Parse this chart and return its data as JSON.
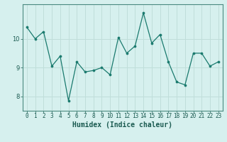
{
  "x": [
    0,
    1,
    2,
    3,
    4,
    5,
    6,
    7,
    8,
    9,
    10,
    11,
    12,
    13,
    14,
    15,
    16,
    17,
    18,
    19,
    20,
    21,
    22,
    23
  ],
  "y": [
    10.4,
    10.0,
    10.25,
    9.05,
    9.4,
    7.85,
    9.2,
    8.85,
    8.9,
    9.0,
    8.75,
    10.05,
    9.5,
    9.75,
    10.9,
    9.85,
    10.15,
    9.2,
    8.5,
    8.4,
    9.5,
    9.5,
    9.05,
    9.2
  ],
  "line_color": "#1a7a6e",
  "marker_color": "#1a7a6e",
  "bg_color": "#d6f0ee",
  "grid_color": "#c0deda",
  "xlabel": "Humidex (Indice chaleur)",
  "yticks": [
    8,
    9,
    10
  ],
  "xlim": [
    -0.5,
    23.5
  ],
  "ylim": [
    7.5,
    11.2
  ],
  "axis_color": "#4a8a80",
  "font_color": "#1a5a50",
  "tick_fontsize": 5.5,
  "label_fontsize": 7.0
}
